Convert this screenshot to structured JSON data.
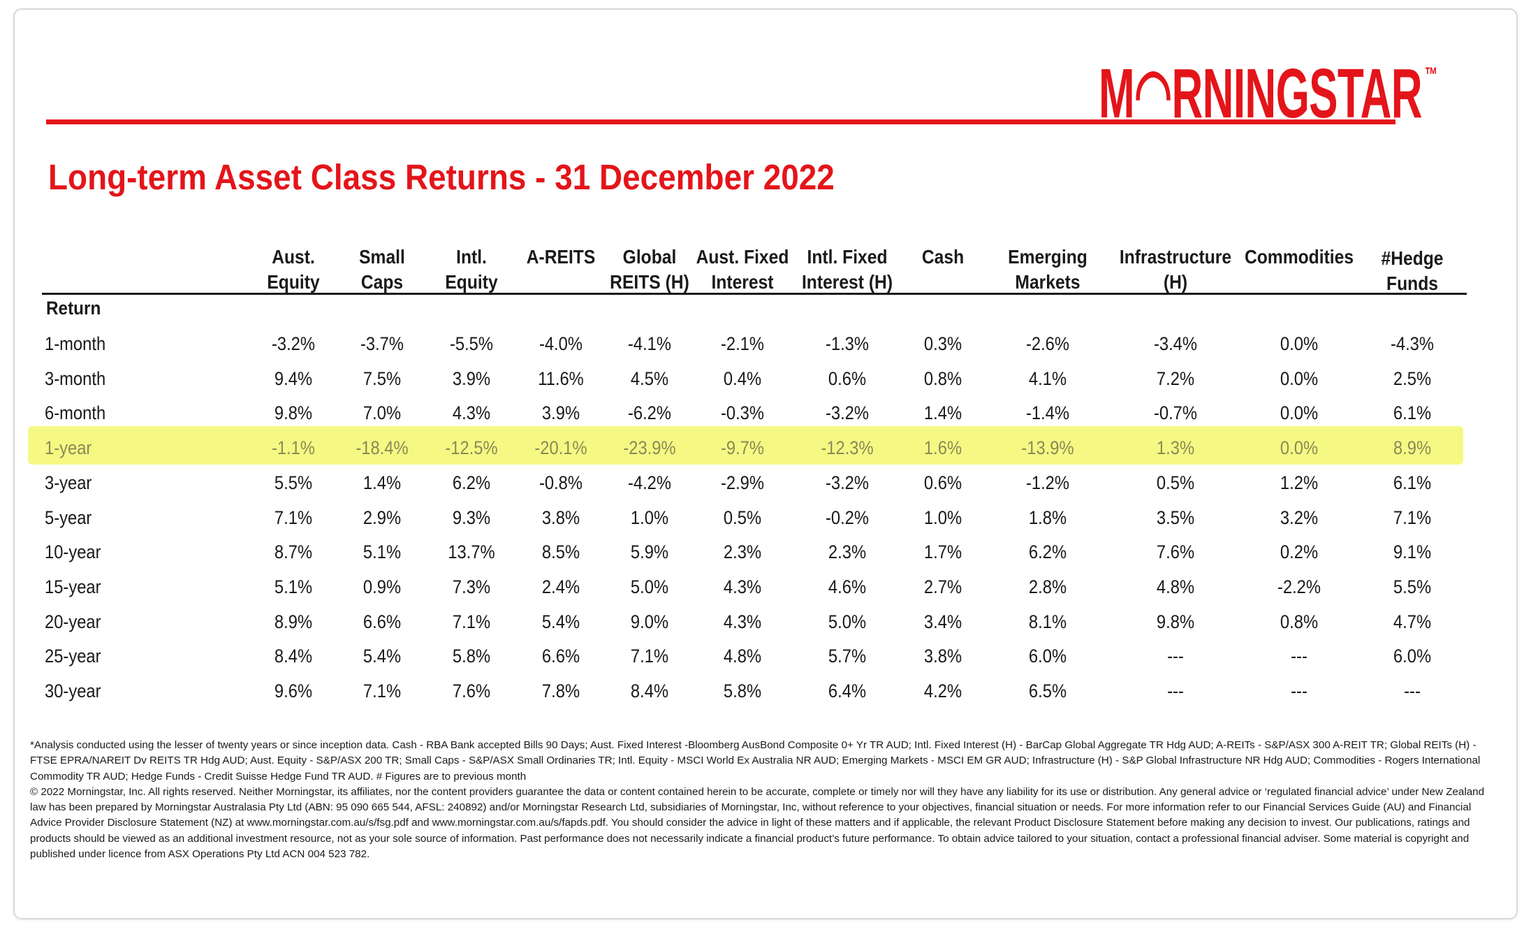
{
  "logo": "M◠RNINGSTAR",
  "logo_tm": "™",
  "title": "Long-term Asset Class Returns - 31 December 2022",
  "row_header": "Return",
  "columns": [
    [
      "Aust.",
      "Equity"
    ],
    [
      "Small",
      "Caps"
    ],
    [
      "Intl.",
      "Equity"
    ],
    [
      "A-REITS",
      ""
    ],
    [
      "Global",
      "REITS (H)"
    ],
    [
      "Aust. Fixed",
      "Interest"
    ],
    [
      "Intl. Fixed",
      "Interest (H)"
    ],
    [
      "Cash",
      ""
    ],
    [
      "Emerging",
      "Markets"
    ],
    [
      "Infrastructure",
      "(H)"
    ],
    [
      "Commodities",
      ""
    ],
    [
      "#Hedge",
      "Funds"
    ]
  ],
  "highlighted_row": "1-year",
  "rows": [
    {
      "label": "1-month",
      "values": [
        "-3.2%",
        "-3.7%",
        "-5.5%",
        "-4.0%",
        "-4.1%",
        "-2.1%",
        "-1.3%",
        "0.3%",
        "-2.6%",
        "-3.4%",
        "0.0%",
        "-4.3%"
      ]
    },
    {
      "label": "3-month",
      "values": [
        "9.4%",
        "7.5%",
        "3.9%",
        "11.6%",
        "4.5%",
        "0.4%",
        "0.6%",
        "0.8%",
        "4.1%",
        "7.2%",
        "0.0%",
        "2.5%"
      ]
    },
    {
      "label": "6-month",
      "values": [
        "9.8%",
        "7.0%",
        "4.3%",
        "3.9%",
        "-6.2%",
        "-0.3%",
        "-3.2%",
        "1.4%",
        "-1.4%",
        "-0.7%",
        "0.0%",
        "6.1%"
      ]
    },
    {
      "label": "1-year",
      "values": [
        "-1.1%",
        "-18.4%",
        "-12.5%",
        "-20.1%",
        "-23.9%",
        "-9.7%",
        "-12.3%",
        "1.6%",
        "-13.9%",
        "1.3%",
        "0.0%",
        "8.9%"
      ]
    },
    {
      "label": "3-year",
      "values": [
        "5.5%",
        "1.4%",
        "6.2%",
        "-0.8%",
        "-4.2%",
        "-2.9%",
        "-3.2%",
        "0.6%",
        "-1.2%",
        "0.5%",
        "1.2%",
        "6.1%"
      ]
    },
    {
      "label": "5-year",
      "values": [
        "7.1%",
        "2.9%",
        "9.3%",
        "3.8%",
        "1.0%",
        "0.5%",
        "-0.2%",
        "1.0%",
        "1.8%",
        "3.5%",
        "3.2%",
        "7.1%"
      ]
    },
    {
      "label": "10-year",
      "values": [
        "8.7%",
        "5.1%",
        "13.7%",
        "8.5%",
        "5.9%",
        "2.3%",
        "2.3%",
        "1.7%",
        "6.2%",
        "7.6%",
        "0.2%",
        "9.1%"
      ]
    },
    {
      "label": "15-year",
      "values": [
        "5.1%",
        "0.9%",
        "7.3%",
        "2.4%",
        "5.0%",
        "4.3%",
        "4.6%",
        "2.7%",
        "2.8%",
        "4.8%",
        "-2.2%",
        "5.5%"
      ]
    },
    {
      "label": "20-year",
      "values": [
        "8.9%",
        "6.6%",
        "7.1%",
        "5.4%",
        "9.0%",
        "4.3%",
        "5.0%",
        "3.4%",
        "8.1%",
        "9.8%",
        "0.8%",
        "4.7%"
      ]
    },
    {
      "label": "25-year",
      "values": [
        "8.4%",
        "5.4%",
        "5.8%",
        "6.6%",
        "7.1%",
        "4.8%",
        "5.7%",
        "3.8%",
        "6.0%",
        "---",
        "---",
        "6.0%"
      ]
    },
    {
      "label": "30-year",
      "values": [
        "9.6%",
        "7.1%",
        "7.6%",
        "7.8%",
        "8.4%",
        "5.8%",
        "6.4%",
        "4.2%",
        "6.5%",
        "---",
        "---",
        "---"
      ]
    }
  ],
  "footnote": [
    "*Analysis conducted using the lesser of twenty years or since inception data. Cash - RBA Bank accepted Bills 90 Days; Aust. Fixed Interest -Bloomberg AusBond Composite 0+ Yr TR AUD; Intl. Fixed Interest (H) - BarCap Global Aggregate TR Hdg AUD; A-REITs - S&P/ASX 300 A-REIT TR; Global REITs (H) - FTSE EPRA/NAREIT Dv REITS TR Hdg AUD; Aust. Equity - S&P/ASX 200 TR; Small Caps - S&P/ASX Small Ordinaries TR; Intl. Equity - MSCI World Ex Australia NR AUD; Emerging Markets - MSCI EM GR AUD; Infrastructure (H) - S&P Global Infrastructure NR Hdg AUD; Commodities - Rogers International Commodity TR AUD; Hedge Funds - Credit Suisse Hedge Fund TR AUD. # Figures are to previous month",
    "© 2022 Morningstar, Inc. All rights reserved. Neither Morningstar, its affiliates, nor the content providers guarantee the data or content contained herein to be accurate, complete or timely nor will they have any liability for its use or distribution. Any general advice or ‘regulated financial advice’ under New Zealand law has been prepared by Morningstar Australasia Pty Ltd (ABN: 95 090 665 544, AFSL: 240892) and/or Morningstar Research Ltd, subsidiaries of Morningstar, Inc, without reference to your objectives, financial situation or needs. For more information refer to our Financial Services Guide (AU) and Financial Advice Provider Disclosure Statement (NZ) at www.morningstar.com.au/s/fsg.pdf and www.morningstar.com.au/s/fapds.pdf. You should consider the advice in light of these matters and if applicable, the relevant Product Disclosure Statement before making any decision to invest. Our publications, ratings and products should be viewed as an additional investment resource, not as your sole source of information. Past performance does not necessarily indicate a financial product’s future performance. To obtain advice tailored to your situation, contact a professional financial adviser. Some material is copyright and published under licence from ASX Operations Pty Ltd ACN 004 523 782."
  ]
}
